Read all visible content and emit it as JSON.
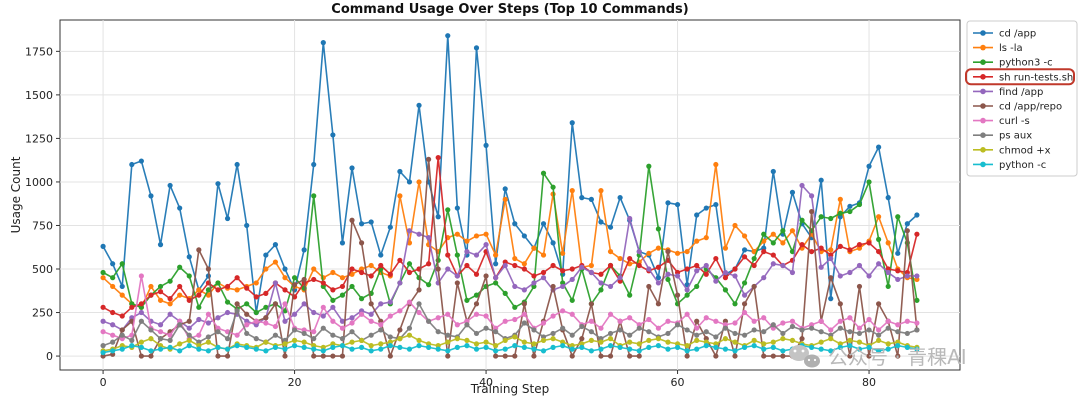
{
  "chart_data": {
    "type": "line",
    "title": "Command Usage Over Steps (Top 10 Commands)",
    "xlabel": "Training Step",
    "ylabel": "Usage Count",
    "xlim": [
      -4.5,
      89.5
    ],
    "ylim": [
      -80,
      1930
    ],
    "xticks": [
      0,
      20,
      40,
      60,
      80
    ],
    "yticks": [
      0,
      250,
      500,
      750,
      1000,
      1250,
      1500,
      1750
    ],
    "grid": true,
    "legend_position": "outside-right",
    "highlighted_series": "sh run-tests.sh",
    "highlight_color": "#c0392b",
    "x": [
      0,
      1,
      2,
      3,
      4,
      5,
      6,
      7,
      8,
      9,
      10,
      11,
      12,
      13,
      14,
      15,
      16,
      17,
      18,
      19,
      20,
      21,
      22,
      23,
      24,
      25,
      26,
      27,
      28,
      29,
      30,
      31,
      32,
      33,
      34,
      35,
      36,
      37,
      38,
      39,
      40,
      41,
      42,
      43,
      44,
      45,
      46,
      47,
      48,
      49,
      50,
      51,
      52,
      53,
      54,
      55,
      56,
      57,
      58,
      59,
      60,
      61,
      62,
      63,
      64,
      65,
      66,
      67,
      68,
      69,
      70,
      71,
      72,
      73,
      74,
      75,
      76,
      77,
      78,
      79,
      80,
      81,
      82,
      83,
      84,
      85
    ],
    "series": [
      {
        "name": "cd /app",
        "color": "#1f77b4",
        "values": [
          630,
          530,
          400,
          1100,
          1120,
          920,
          640,
          980,
          850,
          570,
          380,
          460,
          990,
          790,
          1100,
          750,
          250,
          580,
          640,
          500,
          380,
          610,
          1100,
          1800,
          1270,
          650,
          1080,
          760,
          770,
          580,
          740,
          1060,
          1000,
          1440,
          1000,
          800,
          1840,
          850,
          580,
          1770,
          1210,
          530,
          960,
          760,
          690,
          620,
          760,
          650,
          470,
          1340,
          910,
          900,
          770,
          740,
          910,
          780,
          600,
          580,
          450,
          880,
          870,
          410,
          810,
          850,
          870,
          470,
          500,
          610,
          600,
          620,
          1060,
          700,
          940,
          760,
          680,
          1010,
          330,
          800,
          860,
          880,
          1090,
          1200,
          910,
          590,
          760,
          810
        ]
      },
      {
        "name": "ls -la",
        "color": "#ff7f0e",
        "values": [
          450,
          400,
          350,
          300,
          280,
          400,
          320,
          300,
          350,
          330,
          380,
          350,
          420,
          390,
          380,
          400,
          420,
          500,
          540,
          450,
          400,
          380,
          500,
          450,
          480,
          450,
          470,
          500,
          520,
          480,
          460,
          920,
          650,
          1000,
          640,
          600,
          680,
          700,
          660,
          690,
          700,
          580,
          900,
          560,
          530,
          620,
          580,
          930,
          590,
          950,
          510,
          520,
          950,
          600,
          560,
          530,
          540,
          590,
          620,
          610,
          590,
          600,
          660,
          680,
          1100,
          620,
          750,
          690,
          600,
          660,
          700,
          650,
          720,
          620,
          700,
          600,
          610,
          900,
          600,
          620,
          660,
          800,
          650,
          500,
          450,
          440
        ]
      },
      {
        "name": "python3 -c",
        "color": "#2ca02c",
        "values": [
          480,
          450,
          530,
          300,
          280,
          350,
          400,
          430,
          510,
          460,
          280,
          380,
          420,
          310,
          270,
          300,
          250,
          280,
          300,
          260,
          450,
          390,
          920,
          400,
          320,
          350,
          400,
          330,
          360,
          500,
          300,
          420,
          530,
          450,
          410,
          550,
          840,
          580,
          320,
          350,
          400,
          420,
          360,
          280,
          310,
          400,
          1050,
          970,
          420,
          320,
          500,
          300,
          380,
          520,
          460,
          350,
          580,
          1090,
          730,
          440,
          300,
          350,
          400,
          500,
          450,
          380,
          300,
          420,
          560,
          700,
          650,
          720,
          600,
          780,
          720,
          800,
          790,
          820,
          830,
          870,
          1000,
          670,
          400,
          800,
          650,
          320
        ]
      },
      {
        "name": "sh run-tests.sh",
        "color": "#d62728",
        "values": [
          280,
          250,
          230,
          280,
          300,
          350,
          370,
          330,
          400,
          320,
          350,
          420,
          380,
          400,
          450,
          390,
          340,
          360,
          420,
          380,
          340,
          420,
          440,
          420,
          380,
          400,
          500,
          480,
          460,
          520,
          470,
          550,
          480,
          500,
          530,
          1140,
          580,
          460,
          520,
          470,
          600,
          450,
          540,
          520,
          500,
          460,
          480,
          520,
          490,
          500,
          520,
          480,
          470,
          520,
          430,
          560,
          520,
          490,
          510,
          550,
          480,
          500,
          520,
          470,
          560,
          450,
          500,
          570,
          520,
          600,
          580,
          520,
          550,
          640,
          600,
          620,
          580,
          630,
          610,
          640,
          650,
          600,
          500,
          490,
          480,
          700
        ]
      },
      {
        "name": "find /app",
        "color": "#9467bd",
        "values": [
          200,
          180,
          150,
          220,
          250,
          200,
          180,
          240,
          200,
          160,
          210,
          190,
          220,
          250,
          240,
          200,
          180,
          220,
          420,
          200,
          240,
          300,
          250,
          230,
          280,
          200,
          220,
          260,
          240,
          300,
          310,
          420,
          720,
          700,
          680,
          420,
          500,
          460,
          600,
          580,
          640,
          450,
          520,
          400,
          380,
          420,
          450,
          380,
          400,
          440,
          510,
          480,
          420,
          400,
          450,
          790,
          600,
          500,
          420,
          470,
          460,
          380,
          490,
          520,
          430,
          480,
          460,
          350,
          400,
          450,
          530,
          520,
          480,
          980,
          920,
          510,
          560,
          460,
          480,
          520,
          460,
          530,
          480,
          440,
          460,
          460
        ]
      },
      {
        "name": "cd /app/repo",
        "color": "#8c564b",
        "values": [
          0,
          10,
          150,
          200,
          0,
          0,
          100,
          140,
          180,
          200,
          610,
          500,
          0,
          0,
          300,
          240,
          200,
          220,
          300,
          0,
          410,
          440,
          0,
          0,
          0,
          0,
          780,
          650,
          300,
          200,
          0,
          150,
          300,
          380,
          1130,
          500,
          0,
          420,
          200,
          300,
          460,
          0,
          0,
          0,
          300,
          0,
          200,
          400,
          150,
          0,
          100,
          300,
          0,
          0,
          200,
          0,
          0,
          400,
          300,
          600,
          350,
          0,
          200,
          100,
          0,
          200,
          0,
          300,
          400,
          0,
          0,
          0,
          0,
          100,
          830,
          200,
          450,
          300,
          0,
          400,
          0,
          300,
          200,
          0,
          720,
          150
        ]
      },
      {
        "name": "curl -s",
        "color": "#e377c2",
        "values": [
          140,
          120,
          100,
          120,
          460,
          160,
          140,
          120,
          200,
          100,
          120,
          240,
          160,
          140,
          120,
          180,
          200,
          190,
          170,
          300,
          160,
          150,
          140,
          280,
          200,
          160,
          190,
          240,
          200,
          180,
          230,
          260,
          310,
          250,
          200,
          220,
          240,
          180,
          200,
          240,
          230,
          160,
          200,
          210,
          240,
          160,
          190,
          230,
          260,
          240,
          180,
          200,
          160,
          240,
          200,
          220,
          180,
          210,
          160,
          200,
          190,
          240,
          160,
          220,
          200,
          180,
          190,
          250,
          200,
          220,
          160,
          190,
          200,
          160,
          180,
          200,
          150,
          200,
          220,
          160,
          210,
          150,
          200,
          180,
          200,
          190
        ]
      },
      {
        "name": "ps aux",
        "color": "#7f7f7f",
        "values": [
          60,
          80,
          120,
          90,
          200,
          150,
          100,
          90,
          180,
          120,
          80,
          110,
          140,
          100,
          260,
          130,
          100,
          80,
          120,
          90,
          150,
          130,
          100,
          160,
          120,
          100,
          140,
          90,
          120,
          150,
          110,
          100,
          160,
          300,
          200,
          140,
          120,
          110,
          180,
          130,
          160,
          140,
          100,
          120,
          190,
          150,
          110,
          130,
          160,
          120,
          170,
          140,
          100,
          130,
          150,
          120,
          160,
          140,
          110,
          130,
          180,
          150,
          120,
          140,
          110,
          160,
          130,
          120,
          150,
          140,
          180,
          130,
          170,
          150,
          160,
          140,
          120,
          160,
          140,
          130,
          150,
          120,
          160,
          140,
          130,
          150
        ]
      },
      {
        "name": "chmod +x",
        "color": "#bcbd22",
        "values": [
          30,
          40,
          60,
          50,
          80,
          100,
          60,
          40,
          70,
          90,
          60,
          80,
          50,
          40,
          70,
          60,
          50,
          80,
          60,
          70,
          90,
          80,
          60,
          50,
          70,
          60,
          80,
          90,
          60,
          70,
          80,
          100,
          120,
          90,
          70,
          60,
          80,
          100,
          90,
          70,
          80,
          60,
          90,
          110,
          80,
          70,
          90,
          100,
          80,
          60,
          70,
          90,
          80,
          100,
          60,
          80,
          70,
          90,
          100,
          80,
          70,
          60,
          90,
          80,
          70,
          100,
          80,
          60,
          90,
          70,
          80,
          100,
          90,
          70,
          60,
          80,
          100,
          70,
          90,
          80,
          60,
          90,
          70,
          80,
          60,
          50
        ]
      },
      {
        "name": "python -c",
        "color": "#17becf",
        "values": [
          20,
          30,
          40,
          60,
          50,
          30,
          40,
          50,
          30,
          60,
          40,
          30,
          50,
          40,
          60,
          50,
          40,
          30,
          50,
          40,
          60,
          50,
          40,
          30,
          50,
          60,
          40,
          50,
          30,
          40,
          60,
          50,
          40,
          60,
          50,
          40,
          30,
          50,
          60,
          40,
          50,
          30,
          40,
          60,
          50,
          40,
          30,
          50,
          60,
          40,
          50,
          30,
          40,
          60,
          50,
          40,
          30,
          50,
          60,
          40,
          50,
          30,
          40,
          60,
          50,
          40,
          30,
          50,
          60,
          40,
          50,
          30,
          40,
          60,
          50,
          40,
          30,
          50,
          60,
          40,
          50,
          30,
          40,
          60,
          50,
          40
        ]
      }
    ]
  },
  "watermark": {
    "text": "公众号 · 青稞AI",
    "icon": "wechat-icon"
  }
}
